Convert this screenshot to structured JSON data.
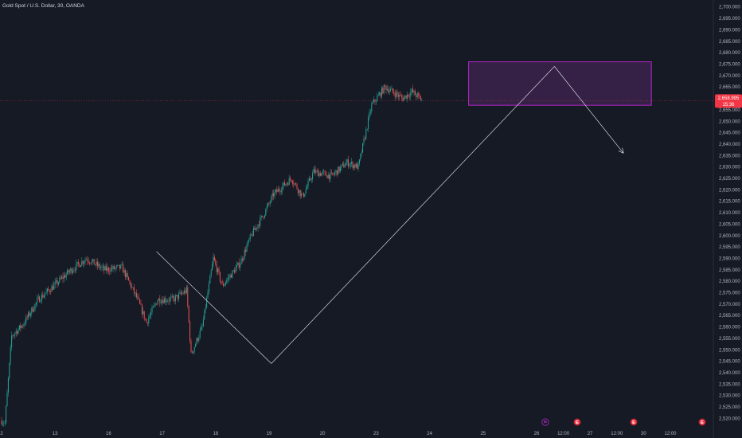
{
  "header": {
    "title": "Gold Spot / U.S. Dollar, 30, OANDA"
  },
  "price_tag": {
    "price": "2,658.995",
    "countdown": "15:36"
  },
  "colors": {
    "background": "#161a25",
    "up": "#26a69a",
    "down": "#ef5350",
    "zone_fill": "#5b2a6e",
    "zone_border": "#c026d3",
    "trendline": "#d1d4dc",
    "axis_text": "#b2b5be",
    "price_tag_bg": "#f23645",
    "event_badge": "#f23645",
    "event_ring": "#9c27b0"
  },
  "event_markers": [
    {
      "x_label": "26",
      "icon": "event-flag-icon",
      "glyph": "⚑"
    },
    {
      "x_label": "12:00",
      "icon": "earnings-icon",
      "glyph": "E"
    },
    {
      "x_label": "12:00 ",
      "icon": "earnings-icon",
      "glyph": "E"
    },
    {
      "x_label": "12:00  ",
      "icon": "earnings-icon",
      "glyph": "E"
    }
  ],
  "chart_data": {
    "type": "candlestick",
    "title": "Gold Spot / U.S. Dollar, 30, OANDA",
    "y_axis": {
      "side": "right",
      "ylim": [
        2517,
        2702
      ],
      "ticks": [
        2520,
        2525,
        2530,
        2535,
        2540,
        2545,
        2550,
        2555,
        2560,
        2565,
        2570,
        2575,
        2580,
        2585,
        2590,
        2595,
        2600,
        2605,
        2610,
        2615,
        2620,
        2625,
        2630,
        2635,
        2640,
        2645,
        2650,
        2655,
        2660,
        2665,
        2670,
        2675,
        2680,
        2685,
        2690,
        2695,
        2700
      ],
      "tick_labels": [
        "2,520.000",
        "2,525.000",
        "2,530.000",
        "2,535.000",
        "2,540.000",
        "2,545.000",
        "2,550.000",
        "2,555.000",
        "2,560.000",
        "2,565.000",
        "2,570.000",
        "2,575.000",
        "2,580.000",
        "2,585.000",
        "2,590.000",
        "2,595.000",
        "2,600.000",
        "2,605.000",
        "2,610.000",
        "2,615.000",
        "2,620.000",
        "2,625.000",
        "2,630.000",
        "2,635.000",
        "2,640.000",
        "2,645.000",
        "2,650.000",
        "2,655.000",
        "2,660.000",
        "2,665.000",
        "2,670.000",
        "2,675.000",
        "2,680.000",
        "2,685.000",
        "2,690.000",
        "2,695.000",
        "2,700.000"
      ]
    },
    "x_axis": {
      "ticks": [
        {
          "label": "2",
          "bar": 0
        },
        {
          "label": "13",
          "bar": 48
        },
        {
          "label": "16",
          "bar": 96
        },
        {
          "label": "17",
          "bar": 144
        },
        {
          "label": "18",
          "bar": 192
        },
        {
          "label": "19",
          "bar": 240
        },
        {
          "label": "20",
          "bar": 288
        },
        {
          "label": "23",
          "bar": 336
        },
        {
          "label": "24",
          "bar": 384
        },
        {
          "label": "25",
          "bar": 432
        },
        {
          "label": "26",
          "bar": 480
        },
        {
          "label": "12:00",
          "bar": 504
        },
        {
          "label": "27",
          "bar": 528
        },
        {
          "label": "12:00",
          "bar": 552
        },
        {
          "label": "30",
          "bar": 576
        },
        {
          "label": "12:00",
          "bar": 600
        }
      ]
    },
    "last_price": 2658.995,
    "grid": false,
    "series": [
      {
        "name": "",
        "segments": [
          {
            "bars": 3,
            "from": 2519,
            "to": 2518
          },
          {
            "bars": 6,
            "from": 2518,
            "to": 2556
          },
          {
            "bars": 10,
            "from": 2556,
            "to": 2561
          },
          {
            "bars": 14,
            "from": 2561,
            "to": 2572
          },
          {
            "bars": 14,
            "from": 2572,
            "to": 2578
          },
          {
            "bars": 13,
            "from": 2578,
            "to": 2584
          },
          {
            "bars": 16,
            "from": 2584,
            "to": 2590
          },
          {
            "bars": 16,
            "from": 2590,
            "to": 2585
          },
          {
            "bars": 16,
            "from": 2585,
            "to": 2586
          },
          {
            "bars": 14,
            "from": 2586,
            "to": 2572
          },
          {
            "bars": 8,
            "from": 2572,
            "to": 2562
          },
          {
            "bars": 10,
            "from": 2562,
            "to": 2572
          },
          {
            "bars": 14,
            "from": 2572,
            "to": 2572
          },
          {
            "bars": 12,
            "from": 2572,
            "to": 2576
          },
          {
            "bars": 4,
            "from": 2576,
            "to": 2548
          },
          {
            "bars": 10,
            "from": 2548,
            "to": 2560
          },
          {
            "bars": 10,
            "from": 2560,
            "to": 2590
          },
          {
            "bars": 8,
            "from": 2590,
            "to": 2578
          },
          {
            "bars": 16,
            "from": 2578,
            "to": 2588
          },
          {
            "bars": 10,
            "from": 2588,
            "to": 2600
          },
          {
            "bars": 12,
            "from": 2600,
            "to": 2610
          },
          {
            "bars": 8,
            "from": 2610,
            "to": 2618
          },
          {
            "bars": 16,
            "from": 2618,
            "to": 2625
          },
          {
            "bars": 10,
            "from": 2625,
            "to": 2617
          },
          {
            "bars": 10,
            "from": 2617,
            "to": 2628
          },
          {
            "bars": 16,
            "from": 2628,
            "to": 2626
          },
          {
            "bars": 14,
            "from": 2626,
            "to": 2632
          },
          {
            "bars": 10,
            "from": 2632,
            "to": 2630
          },
          {
            "bars": 12,
            "from": 2630,
            "to": 2657
          },
          {
            "bars": 12,
            "from": 2657,
            "to": 2665
          },
          {
            "bars": 16,
            "from": 2665,
            "to": 2660
          },
          {
            "bars": 8,
            "from": 2660,
            "to": 2663
          },
          {
            "bars": 10,
            "from": 2663,
            "to": 2659
          }
        ]
      }
    ],
    "annotations": {
      "zone": {
        "x_from_bar": 419,
        "x_to_bar": 583,
        "y_from": 2657,
        "y_to": 2676
      },
      "line_1": {
        "from_bar": 139,
        "from_y": 2593,
        "to_bar": 242,
        "to_y": 2544
      },
      "line_2": {
        "from_bar": 242,
        "from_y": 2544,
        "to_bar": 496,
        "to_y": 2674
      },
      "arrow": {
        "from_bar": 496,
        "from_y": 2674,
        "to_bar": 558,
        "to_y": 2636
      }
    }
  }
}
